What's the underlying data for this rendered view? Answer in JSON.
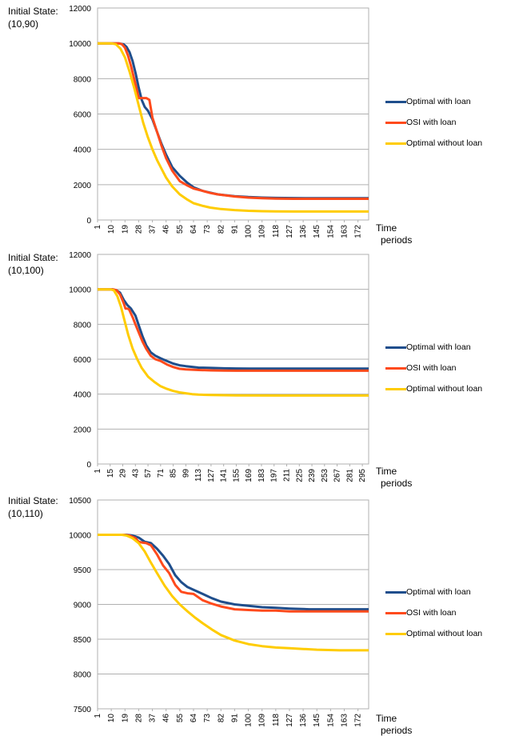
{
  "chart_data": [
    {
      "type": "line",
      "initial_state_label": "Initial State:",
      "initial_state_value": "(10,90)",
      "xlabel_line1": "Time",
      "xlabel_line2": "periods",
      "ylim": [
        0,
        12000
      ],
      "yticks": [
        0,
        2000,
        4000,
        6000,
        8000,
        10000,
        12000
      ],
      "grid": true,
      "legend_position": "right",
      "x": [
        1,
        10,
        19,
        28,
        37,
        46,
        55,
        64,
        73,
        82,
        91,
        100,
        109,
        118,
        127,
        136,
        145,
        154,
        163,
        172
      ],
      "xrange": [
        1,
        179
      ],
      "series": [
        {
          "name": "Optimal with loan",
          "color": "#1f4e8c",
          "x": [
            1,
            15,
            18,
            20,
            22,
            24,
            26,
            28,
            30,
            32,
            34,
            37,
            40,
            43,
            46,
            50,
            55,
            60,
            64,
            70,
            75,
            80,
            91,
            100,
            109,
            118,
            130,
            145,
            160,
            179
          ],
          "values": [
            10000,
            10000,
            9950,
            9800,
            9500,
            9000,
            8300,
            7500,
            6800,
            6400,
            6200,
            5700,
            5000,
            4300,
            3700,
            3000,
            2500,
            2100,
            1850,
            1650,
            1550,
            1450,
            1350,
            1300,
            1270,
            1250,
            1240,
            1230,
            1230,
            1230
          ]
        },
        {
          "name": "OSI with loan",
          "color": "#ff4a1c",
          "x": [
            1,
            15,
            17,
            19,
            21,
            23,
            25,
            27,
            28,
            30,
            31,
            33,
            35,
            37,
            40,
            43,
            46,
            50,
            55,
            60,
            64,
            70,
            75,
            80,
            91,
            100,
            109,
            118,
            130,
            145,
            160,
            179
          ],
          "values": [
            10000,
            10000,
            9950,
            9750,
            9300,
            8700,
            8000,
            7300,
            6900,
            6900,
            6900,
            6900,
            6800,
            5800,
            5000,
            4200,
            3500,
            2800,
            2200,
            1950,
            1780,
            1650,
            1530,
            1450,
            1330,
            1270,
            1230,
            1210,
            1200,
            1200,
            1200,
            1200
          ]
        },
        {
          "name": "Optimal without loan",
          "color": "#ffcc00",
          "x": [
            1,
            10,
            13,
            16,
            19,
            22,
            25,
            28,
            31,
            34,
            37,
            40,
            43,
            46,
            50,
            55,
            60,
            64,
            70,
            75,
            82,
            91,
            100,
            109,
            118,
            130,
            145,
            160,
            179
          ],
          "values": [
            10000,
            10000,
            9950,
            9700,
            9200,
            8400,
            7500,
            6500,
            5500,
            4700,
            4000,
            3400,
            2900,
            2400,
            1900,
            1450,
            1150,
            950,
            800,
            700,
            620,
            560,
            520,
            500,
            490,
            480,
            480,
            480,
            480
          ]
        }
      ]
    },
    {
      "type": "line",
      "initial_state_label": "Initial State:",
      "initial_state_value": "(10,100)",
      "xlabel_line1": "Time",
      "xlabel_line2": "periods",
      "ylim": [
        0,
        12000
      ],
      "yticks": [
        0,
        2000,
        4000,
        6000,
        8000,
        10000,
        12000
      ],
      "grid": true,
      "legend_position": "right",
      "x": [
        1,
        15,
        29,
        43,
        57,
        71,
        85,
        99,
        113,
        127,
        141,
        155,
        169,
        183,
        197,
        211,
        225,
        239,
        253,
        267,
        281,
        295
      ],
      "xrange": [
        1,
        302
      ],
      "series": [
        {
          "name": "Optimal with loan",
          "color": "#1f4e8c",
          "x": [
            1,
            18,
            22,
            26,
            30,
            34,
            38,
            43,
            47,
            51,
            55,
            60,
            65,
            71,
            78,
            85,
            92,
            99,
            113,
            127,
            141,
            155,
            170,
            200,
            250,
            302
          ],
          "values": [
            10000,
            10000,
            9950,
            9800,
            9400,
            9100,
            8900,
            8500,
            7900,
            7300,
            6800,
            6400,
            6200,
            6050,
            5900,
            5750,
            5650,
            5600,
            5520,
            5500,
            5480,
            5470,
            5460,
            5460,
            5460,
            5460
          ]
        },
        {
          "name": "OSI with loan",
          "color": "#ff4a1c",
          "x": [
            1,
            18,
            22,
            26,
            30,
            32,
            34,
            36,
            40,
            43,
            47,
            51,
            55,
            60,
            65,
            71,
            78,
            85,
            92,
            99,
            113,
            127,
            141,
            155,
            170,
            200,
            250,
            302
          ],
          "values": [
            10000,
            10000,
            9950,
            9700,
            9200,
            8900,
            8900,
            8850,
            8400,
            8000,
            7500,
            7000,
            6600,
            6200,
            6000,
            5900,
            5700,
            5550,
            5450,
            5420,
            5380,
            5360,
            5350,
            5340,
            5340,
            5340,
            5340,
            5340
          ]
        },
        {
          "name": "Optimal without loan",
          "color": "#ffcc00",
          "x": [
            1,
            15,
            19,
            23,
            27,
            31,
            35,
            40,
            45,
            50,
            57,
            64,
            71,
            78,
            85,
            92,
            99,
            106,
            113,
            127,
            141,
            155,
            200,
            250,
            302
          ],
          "values": [
            10000,
            10000,
            9950,
            9600,
            9000,
            8200,
            7400,
            6600,
            6000,
            5500,
            5000,
            4700,
            4450,
            4300,
            4180,
            4100,
            4050,
            4000,
            3970,
            3950,
            3940,
            3930,
            3920,
            3920,
            3920
          ]
        }
      ]
    },
    {
      "type": "line",
      "initial_state_label": "Initial State:",
      "initial_state_value": "(10,110)",
      "xlabel_line1": "Time",
      "xlabel_line2": "periods",
      "ylim": [
        7500,
        10500
      ],
      "yticks": [
        7500,
        8000,
        8500,
        9000,
        9500,
        10000,
        10500
      ],
      "grid": true,
      "legend_position": "right",
      "x": [
        1,
        10,
        19,
        28,
        37,
        46,
        55,
        64,
        73,
        82,
        91,
        100,
        109,
        118,
        127,
        136,
        145,
        154,
        163,
        172
      ],
      "xrange": [
        1,
        179
      ],
      "series": [
        {
          "name": "Optimal with loan",
          "color": "#1f4e8c",
          "x": [
            1,
            20,
            24,
            28,
            32,
            36,
            40,
            44,
            48,
            52,
            56,
            60,
            64,
            70,
            76,
            82,
            91,
            100,
            109,
            118,
            127,
            140,
            155,
            179
          ],
          "values": [
            10000,
            10000,
            9990,
            9960,
            9900,
            9880,
            9800,
            9700,
            9580,
            9420,
            9320,
            9250,
            9210,
            9150,
            9090,
            9040,
            9000,
            8980,
            8960,
            8950,
            8940,
            8930,
            8930,
            8930
          ]
        },
        {
          "name": "OSI with loan",
          "color": "#ff4a1c",
          "x": [
            1,
            18,
            22,
            26,
            28,
            30,
            33,
            36,
            40,
            44,
            48,
            52,
            56,
            58,
            60,
            64,
            70,
            76,
            82,
            91,
            100,
            109,
            118,
            127,
            140,
            155,
            179
          ],
          "values": [
            10000,
            10000,
            9990,
            9950,
            9900,
            9890,
            9880,
            9850,
            9720,
            9560,
            9450,
            9280,
            9180,
            9170,
            9160,
            9150,
            9060,
            9010,
            8970,
            8930,
            8920,
            8910,
            8910,
            8900,
            8900,
            8900,
            8900
          ]
        },
        {
          "name": "Optimal without loan",
          "color": "#ffcc00",
          "x": [
            1,
            17,
            20,
            24,
            28,
            32,
            36,
            40,
            45,
            50,
            55,
            60,
            65,
            70,
            76,
            82,
            91,
            100,
            109,
            118,
            127,
            136,
            145,
            160,
            179
          ],
          "values": [
            10000,
            10000,
            9990,
            9950,
            9880,
            9760,
            9600,
            9450,
            9270,
            9120,
            9000,
            8900,
            8810,
            8730,
            8640,
            8560,
            8480,
            8430,
            8400,
            8380,
            8370,
            8360,
            8350,
            8340,
            8340
          ]
        }
      ]
    }
  ]
}
